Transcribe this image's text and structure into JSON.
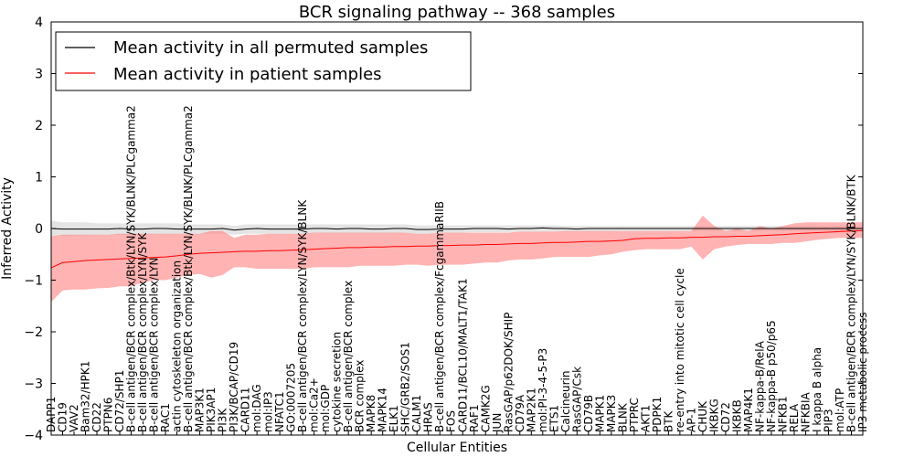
{
  "chart_data": {
    "type": "line",
    "title": "BCR signaling pathway -- 368 samples",
    "xlabel": "Cellular Entities",
    "ylabel": "Inferred Activity",
    "ylim": [
      -4,
      4
    ],
    "yticks": [
      -4,
      -3,
      -2,
      -1,
      0,
      1,
      2,
      3,
      4
    ],
    "legend": {
      "position": "top-left",
      "entries": [
        {
          "label": "Mean activity in all permuted samples",
          "color": "#000000"
        },
        {
          "label": "Mean activity in patient samples",
          "color": "#ff0000"
        }
      ]
    },
    "colors": {
      "permuted_line": "#000000",
      "permuted_band": "#bbbbbb",
      "patient_line": "#ff0000",
      "patient_band": "#ff8080"
    },
    "entities": [
      "DAPP1",
      "CD19",
      "VAV2",
      "Bam32/HPK1",
      "CD22",
      "PTPN6",
      "CD72/SHP1",
      "B-cell antigen/BCR complex/Btk/LYN/SYK/BLNK/PLCgamma2",
      "B-cell antigen/BCR complex/LYN/SYK",
      "B-cell antigen/BCR complex/LYN",
      "RAC1",
      "actin cytoskeleton organization",
      "B-cell antigen/BCR complex/Btk/LYN/SYK/BLNK/PLCgamma2",
      "MAP3K1",
      "PIK3AP1",
      "PI3K",
      "PI3K/BCAP/CD19",
      "CARD11",
      "mol:DAG",
      "mol:IP3",
      "NFATC1",
      "GO:0007205",
      "B-cell antigen/BCR complex/LYN/SYK/BLNK",
      "mol:Ca2+",
      "mol:GDP",
      "cytokine secretion",
      "B-cell antigen/BCR complex",
      "BCR complex",
      "MAPK8",
      "MAPK14",
      "ELK1",
      "SHC/GRB2/SOS1",
      "CALM1",
      "HRAS",
      "B-cell antigen/BCR complex/FcgammaRIIB",
      "FOS",
      "CARD11/BCL10/MALT1/TAK1",
      "RAF1",
      "CAMK2G",
      "JUN",
      "RasGAP/p62DOK/SHIP",
      "CD79A",
      "MAP2K1",
      "mol:PI-3-4-5-P3",
      "ETS1",
      "Calcineurin",
      "RasGAP/Csk",
      "CD79B",
      "MAPK1",
      "MAPK3",
      "BLNK",
      "PTPRC",
      "AKT1",
      "PDPK1",
      "BTK",
      "re-entry into mitotic cell cycle",
      "AP-1",
      "CHUK",
      "IKBKG",
      "CD72",
      "IKBKB",
      "MAP4K1",
      "NF-kappa-B/RelA",
      "NF-kappa-B p50/p65",
      "NFKB1",
      "RELA",
      "NFKBIA",
      "I kappa B alpha",
      "PIP3",
      "mol:ATP",
      "B-cell antigen/BCR complex/LYN/SYK/BLNK/BTK",
      "IP3 metabolic process"
    ],
    "patient_mean": [
      -0.76,
      -0.66,
      -0.64,
      -0.62,
      -0.61,
      -0.6,
      -0.59,
      -0.58,
      -0.57,
      -0.56,
      -0.55,
      -0.53,
      -0.5,
      -0.48,
      -0.47,
      -0.46,
      -0.45,
      -0.44,
      -0.44,
      -0.43,
      -0.43,
      -0.42,
      -0.41,
      -0.4,
      -0.39,
      -0.38,
      -0.37,
      -0.37,
      -0.36,
      -0.36,
      -0.35,
      -0.35,
      -0.34,
      -0.34,
      -0.33,
      -0.33,
      -0.32,
      -0.32,
      -0.31,
      -0.31,
      -0.3,
      -0.29,
      -0.29,
      -0.28,
      -0.27,
      -0.27,
      -0.26,
      -0.25,
      -0.25,
      -0.24,
      -0.23,
      -0.2,
      -0.19,
      -0.19,
      -0.18,
      -0.18,
      -0.17,
      -0.17,
      -0.16,
      -0.16,
      -0.15,
      -0.15,
      -0.14,
      -0.13,
      -0.12,
      -0.1,
      -0.09,
      -0.08,
      -0.07,
      -0.06,
      -0.05,
      -0.04
    ],
    "patient_upper": [
      -0.15,
      -0.12,
      -0.12,
      -0.12,
      -0.12,
      -0.12,
      -0.1,
      -0.1,
      -0.1,
      -0.1,
      -0.1,
      -0.1,
      -0.1,
      -0.1,
      -0.05,
      -0.05,
      -0.18,
      -0.12,
      -0.12,
      -0.1,
      -0.1,
      -0.1,
      -0.1,
      -0.08,
      -0.08,
      -0.08,
      -0.08,
      -0.08,
      -0.08,
      -0.08,
      -0.08,
      -0.08,
      -0.1,
      -0.1,
      -0.08,
      -0.08,
      -0.08,
      -0.08,
      -0.08,
      -0.08,
      -0.08,
      -0.06,
      -0.06,
      -0.06,
      -0.06,
      -0.05,
      -0.05,
      -0.05,
      -0.05,
      -0.05,
      -0.05,
      -0.05,
      -0.05,
      -0.05,
      -0.05,
      -0.05,
      -0.05,
      0.25,
      0.05,
      -0.05,
      0.0,
      -0.05,
      0.05,
      0.0,
      0.05,
      0.1,
      0.12,
      0.12,
      0.12,
      0.12,
      0.12,
      0.12
    ],
    "patient_lower": [
      -1.42,
      -1.2,
      -1.18,
      -1.18,
      -1.16,
      -1.15,
      -1.12,
      -1.12,
      -1.05,
      -1.0,
      -1.0,
      -0.95,
      -0.9,
      -0.88,
      -0.95,
      -0.9,
      -0.75,
      -0.75,
      -0.78,
      -0.78,
      -0.78,
      -0.78,
      -0.78,
      -0.75,
      -0.75,
      -0.75,
      -0.75,
      -0.72,
      -0.72,
      -0.72,
      -0.72,
      -0.7,
      -0.7,
      -0.72,
      -0.7,
      -0.7,
      -0.7,
      -0.68,
      -0.66,
      -0.66,
      -0.62,
      -0.6,
      -0.6,
      -0.58,
      -0.55,
      -0.55,
      -0.55,
      -0.55,
      -0.52,
      -0.5,
      -0.45,
      -0.42,
      -0.4,
      -0.4,
      -0.4,
      -0.4,
      -0.35,
      -0.6,
      -0.4,
      -0.35,
      -0.32,
      -0.3,
      -0.3,
      -0.3,
      -0.28,
      -0.28,
      -0.25,
      -0.22,
      -0.2,
      -0.18,
      -0.18,
      -0.18
    ],
    "permuted_mean": [
      0.0,
      -0.01,
      -0.01,
      -0.01,
      -0.01,
      -0.01,
      0.0,
      -0.01,
      -0.01,
      0.0,
      0.0,
      -0.01,
      -0.01,
      -0.01,
      -0.01,
      0.0,
      -0.03,
      -0.01,
      0.0,
      -0.01,
      -0.01,
      -0.01,
      -0.01,
      0.0,
      0.0,
      -0.01,
      0.0,
      0.0,
      -0.01,
      -0.01,
      0.0,
      0.0,
      -0.02,
      -0.02,
      -0.01,
      -0.01,
      -0.01,
      0.0,
      0.0,
      0.0,
      -0.01,
      0.0,
      0.0,
      0.01,
      0.0,
      0.0,
      -0.01,
      0.0,
      0.0,
      0.0,
      0.0,
      0.0,
      0.0,
      0.0,
      0.0,
      0.0,
      0.0,
      0.0,
      0.0,
      0.0,
      0.0,
      0.0,
      0.0,
      0.0,
      0.0,
      0.0,
      0.0,
      0.0,
      0.0,
      0.0,
      0.0,
      0.0
    ],
    "permuted_upper": [
      0.15,
      0.12,
      0.12,
      0.12,
      0.1,
      0.1,
      0.1,
      0.1,
      0.1,
      0.1,
      0.1,
      0.1,
      0.08,
      0.08,
      0.08,
      0.08,
      0.05,
      0.08,
      0.08,
      0.08,
      0.08,
      0.08,
      0.08,
      0.08,
      0.08,
      0.08,
      0.08,
      0.08,
      0.08,
      0.08,
      0.08,
      0.08,
      0.06,
      0.06,
      0.06,
      0.06,
      0.06,
      0.06,
      0.06,
      0.06,
      0.06,
      0.06,
      0.06,
      0.06,
      0.06,
      0.05,
      0.05,
      0.05,
      0.05,
      0.05,
      0.05,
      0.05,
      0.05,
      0.05,
      0.05,
      0.05,
      0.05,
      0.05,
      0.05,
      0.05,
      0.05,
      0.05,
      0.05,
      0.05,
      0.05,
      0.05,
      0.05,
      0.05,
      0.05,
      0.05,
      0.05,
      0.05
    ],
    "permuted_lower": [
      -0.15,
      -0.14,
      -0.14,
      -0.13,
      -0.13,
      -0.12,
      -0.12,
      -0.12,
      -0.12,
      -0.11,
      -0.11,
      -0.11,
      -0.1,
      -0.1,
      -0.1,
      -0.1,
      -0.12,
      -0.1,
      -0.1,
      -0.1,
      -0.1,
      -0.1,
      -0.1,
      -0.09,
      -0.09,
      -0.09,
      -0.09,
      -0.09,
      -0.09,
      -0.09,
      -0.09,
      -0.08,
      -0.1,
      -0.1,
      -0.08,
      -0.08,
      -0.08,
      -0.07,
      -0.07,
      -0.07,
      -0.07,
      -0.06,
      -0.06,
      -0.06,
      -0.06,
      -0.06,
      -0.06,
      -0.06,
      -0.06,
      -0.06,
      -0.05,
      -0.05,
      -0.05,
      -0.05,
      -0.05,
      -0.05,
      -0.05,
      -0.05,
      -0.05,
      -0.05,
      -0.05,
      -0.05,
      -0.05,
      -0.05,
      -0.05,
      -0.05,
      -0.05,
      -0.05,
      -0.05,
      -0.05,
      -0.05,
      -0.05
    ]
  }
}
